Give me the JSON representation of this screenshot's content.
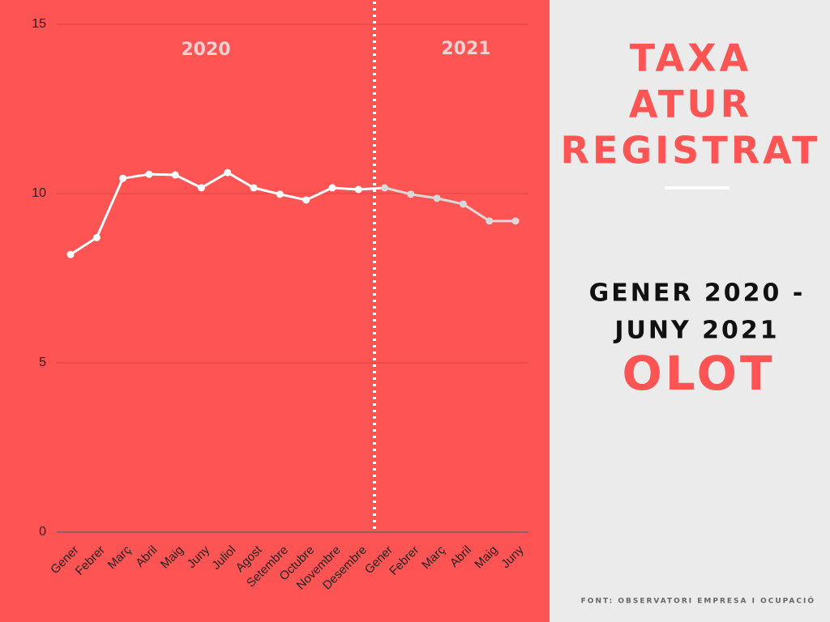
{
  "chart_data": {
    "type": "line",
    "title": [
      "TAXA",
      "ATUR",
      "REGISTRAT"
    ],
    "subtitle": [
      "GENER 2020 -",
      "JUNY 2021"
    ],
    "place": "OLOT",
    "source": "FONT: OBSERVATORI EMPRESA I OCUPACIÓ",
    "categories": [
      "Gener",
      "Febrer",
      "Març",
      "Abril",
      "Maig",
      "Juny",
      "Juliol",
      "Agost",
      "Setembre",
      "Octubre",
      "Novembre",
      "Desembre",
      "Gener",
      "Febrer",
      "Març",
      "Abril",
      "Maig",
      "Juny"
    ],
    "series": [
      {
        "name": "2020",
        "color": "#ffffff",
        "values": [
          8.2,
          8.7,
          10.45,
          10.57,
          10.55,
          10.17,
          10.62,
          10.17,
          9.98,
          9.81,
          10.17,
          10.12,
          null,
          null,
          null,
          null,
          null,
          null
        ]
      },
      {
        "name": "2021",
        "color": "#d9d9d9",
        "values": [
          null,
          null,
          null,
          null,
          null,
          null,
          null,
          null,
          null,
          null,
          null,
          null,
          10.17,
          9.98,
          9.86,
          9.69,
          9.19,
          9.19
        ]
      }
    ],
    "ylim": [
      0,
      15
    ],
    "yticks": [
      0,
      5,
      10,
      15
    ],
    "grid": true
  }
}
